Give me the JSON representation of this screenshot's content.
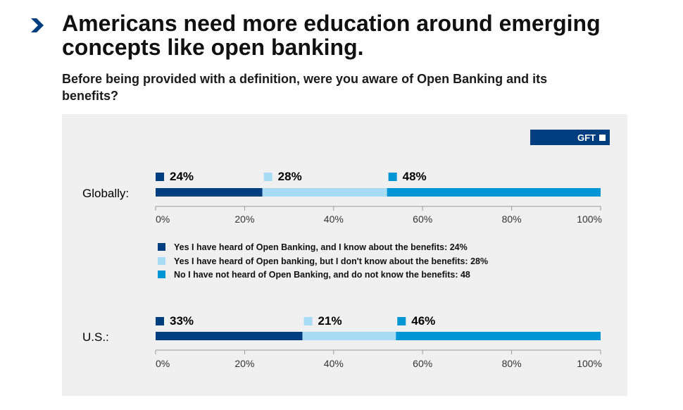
{
  "header": {
    "title": "Americans need more education around emerging concepts like open banking.",
    "subtitle": "Before being provided with a definition, were you aware of Open Banking and its benefits?"
  },
  "brand": {
    "badge_text": "GFT"
  },
  "colors": {
    "dark_blue": "#003e80",
    "light_blue": "#a8dcf5",
    "mid_blue": "#0096d6",
    "panel_bg": "#f0f0f0",
    "chevron": "#003e80"
  },
  "chart_data": {
    "type": "bar",
    "orientation": "horizontal-stacked",
    "categories": [
      "Globally:",
      "U.S.:"
    ],
    "series": [
      {
        "name": "Yes I have heard of Open Banking, and I know about the benefits: 24%",
        "values": [
          24,
          33
        ]
      },
      {
        "name": "Yes I have heard of Open banking, but I don't know about the benefits: 28%",
        "values": [
          28,
          21
        ]
      },
      {
        "name": "No I have not heard of Open Banking, and do not know the benefits: 48",
        "values": [
          48,
          46
        ]
      }
    ],
    "value_labels": [
      [
        "24%",
        "28%",
        "48%"
      ],
      [
        "33%",
        "21%",
        "46%"
      ]
    ],
    "x_ticks": [
      "0%",
      "20%",
      "40%",
      "60%",
      "80%",
      "100%"
    ],
    "xlim": [
      0,
      100
    ],
    "legend_placement": "between charts"
  }
}
